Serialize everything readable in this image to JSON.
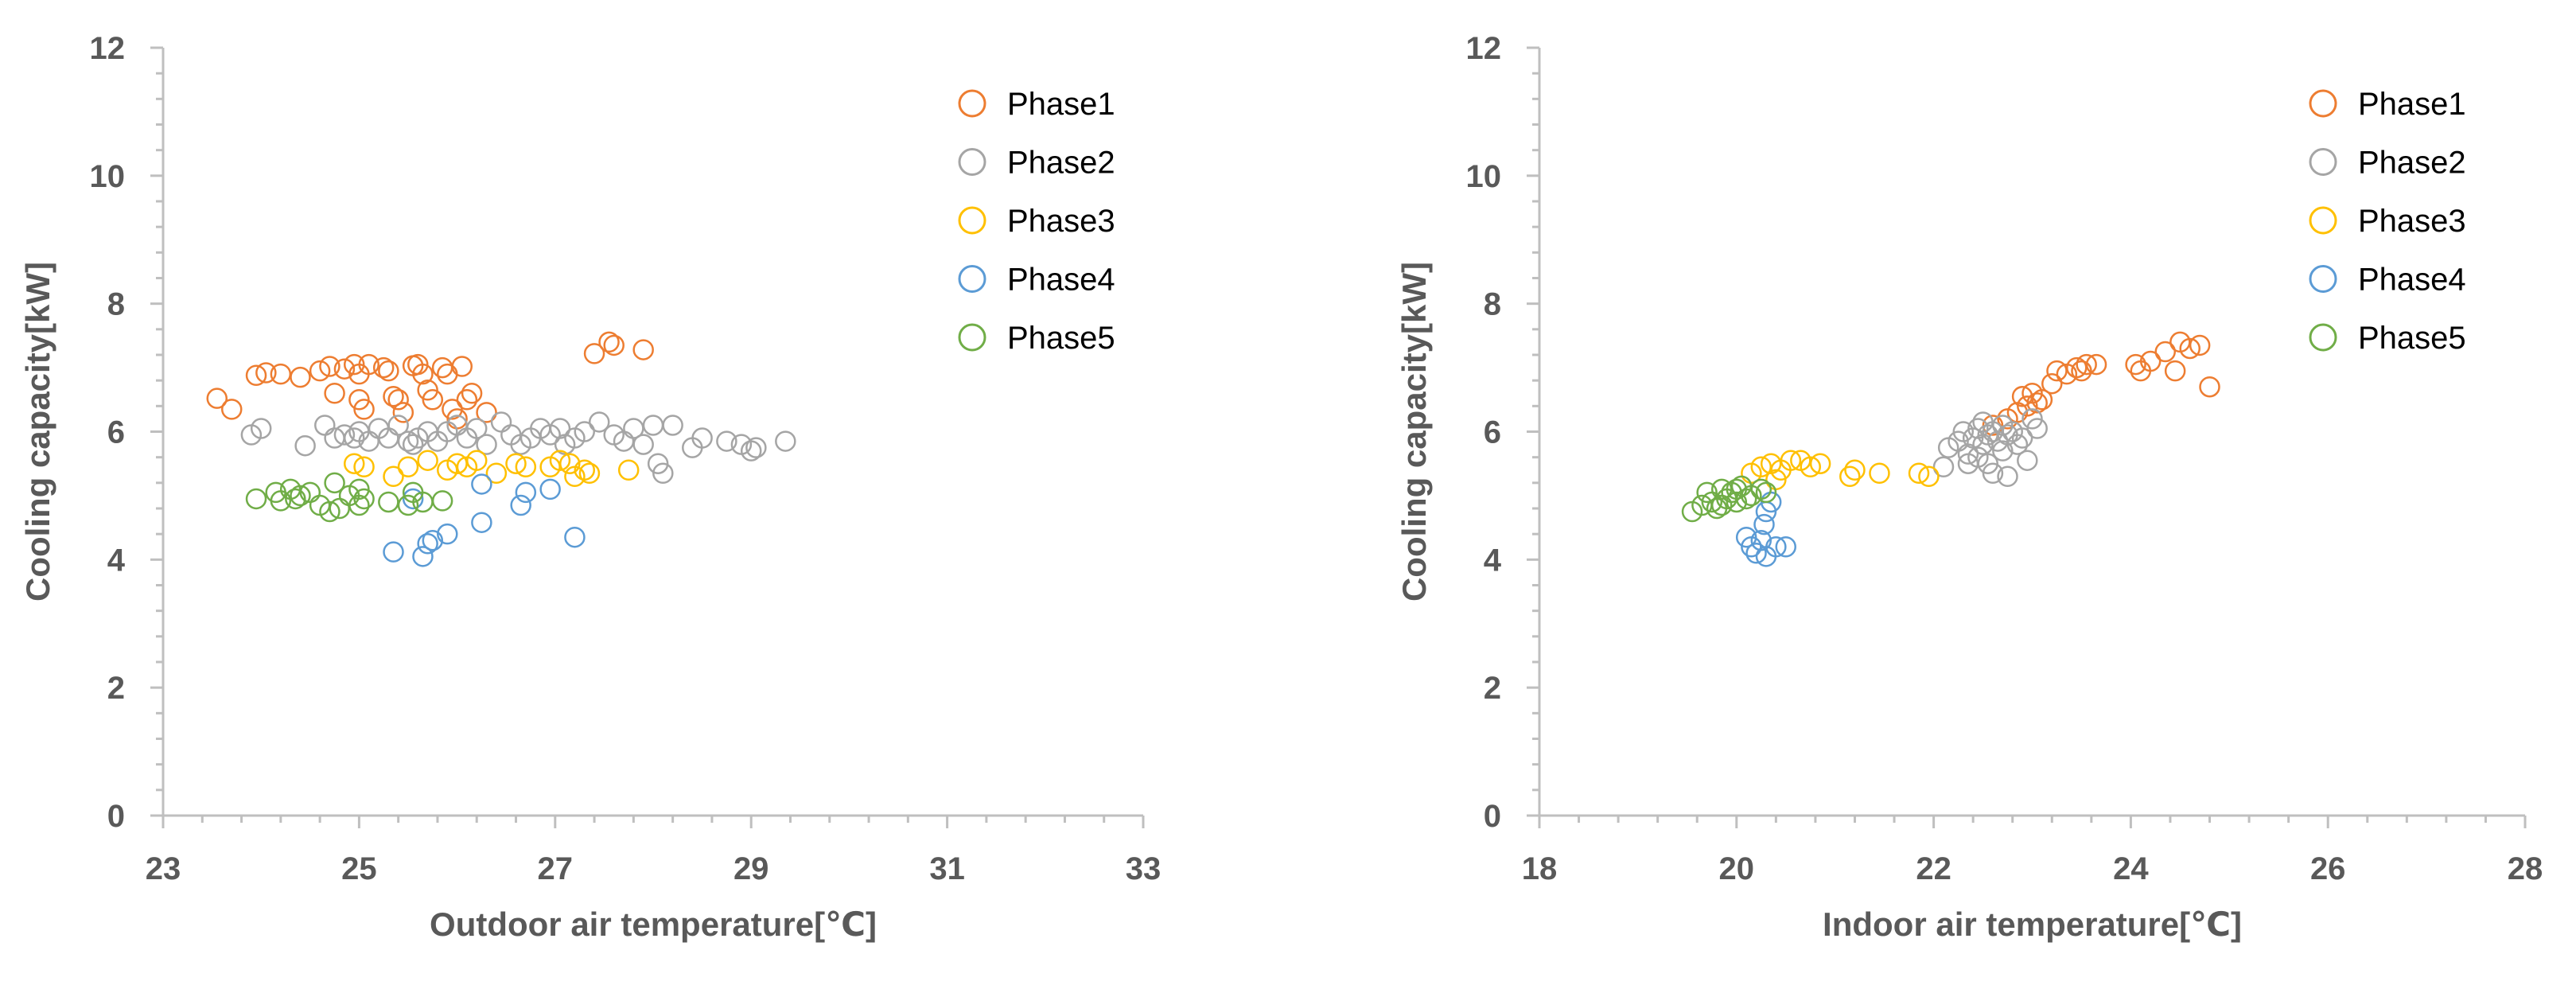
{
  "chart_data": [
    {
      "type": "scatter",
      "title": "",
      "xlabel": "Outdoor air temperature[℃]",
      "ylabel": "Cooling capacity[kW]",
      "xlim": [
        23,
        33
      ],
      "ylim": [
        0,
        12
      ],
      "xticks": [
        "23",
        "25",
        "27",
        "29",
        "31",
        "33"
      ],
      "yticks": [
        "0",
        "2",
        "4",
        "6",
        "8",
        "10",
        "12"
      ],
      "legend_position": "top-right",
      "series": [
        {
          "name": "Phase1",
          "color": "#ED7D31",
          "points": [
            [
              23.55,
              6.52
            ],
            [
              23.7,
              6.35
            ],
            [
              23.95,
              6.88
            ],
            [
              24.05,
              6.92
            ],
            [
              24.2,
              6.9
            ],
            [
              24.4,
              6.85
            ],
            [
              24.6,
              6.95
            ],
            [
              24.7,
              7.02
            ],
            [
              24.75,
              6.6
            ],
            [
              24.85,
              6.98
            ],
            [
              24.95,
              7.05
            ],
            [
              25.0,
              6.9
            ],
            [
              25.0,
              6.5
            ],
            [
              25.05,
              6.35
            ],
            [
              25.1,
              7.05
            ],
            [
              25.25,
              7.0
            ],
            [
              25.3,
              6.95
            ],
            [
              25.35,
              6.55
            ],
            [
              25.4,
              6.5
            ],
            [
              25.45,
              6.3
            ],
            [
              25.55,
              7.03
            ],
            [
              25.6,
              7.05
            ],
            [
              25.65,
              6.9
            ],
            [
              25.7,
              6.65
            ],
            [
              25.75,
              6.5
            ],
            [
              25.85,
              7.0
            ],
            [
              25.9,
              6.9
            ],
            [
              25.95,
              6.35
            ],
            [
              26.0,
              6.2
            ],
            [
              26.05,
              7.02
            ],
            [
              26.1,
              6.5
            ],
            [
              26.15,
              6.6
            ],
            [
              26.3,
              6.3
            ],
            [
              27.4,
              7.22
            ],
            [
              27.55,
              7.4
            ],
            [
              27.6,
              7.35
            ],
            [
              27.9,
              7.28
            ]
          ]
        },
        {
          "name": "Phase2",
          "color": "#A5A5A5",
          "points": [
            [
              23.9,
              5.95
            ],
            [
              24.0,
              6.05
            ],
            [
              24.45,
              5.78
            ],
            [
              24.65,
              6.1
            ],
            [
              24.75,
              5.9
            ],
            [
              24.85,
              5.95
            ],
            [
              24.95,
              5.9
            ],
            [
              25.0,
              6.0
            ],
            [
              25.1,
              5.85
            ],
            [
              25.2,
              6.05
            ],
            [
              25.3,
              5.9
            ],
            [
              25.4,
              6.1
            ],
            [
              25.5,
              5.85
            ],
            [
              25.55,
              5.8
            ],
            [
              25.6,
              5.9
            ],
            [
              25.7,
              6.0
            ],
            [
              25.8,
              5.85
            ],
            [
              25.9,
              6.0
            ],
            [
              26.0,
              6.1
            ],
            [
              26.1,
              5.9
            ],
            [
              26.2,
              6.05
            ],
            [
              26.3,
              5.8
            ],
            [
              26.45,
              6.15
            ],
            [
              26.55,
              5.95
            ],
            [
              26.65,
              5.8
            ],
            [
              26.75,
              5.9
            ],
            [
              26.85,
              6.05
            ],
            [
              26.95,
              5.95
            ],
            [
              27.05,
              6.05
            ],
            [
              27.1,
              5.8
            ],
            [
              27.2,
              5.9
            ],
            [
              27.3,
              6.0
            ],
            [
              27.45,
              6.15
            ],
            [
              27.6,
              5.95
            ],
            [
              27.7,
              5.85
            ],
            [
              27.8,
              6.05
            ],
            [
              27.9,
              5.8
            ],
            [
              28.0,
              6.1
            ],
            [
              28.05,
              5.5
            ],
            [
              28.1,
              5.35
            ],
            [
              28.2,
              6.1
            ],
            [
              28.4,
              5.75
            ],
            [
              28.5,
              5.9
            ],
            [
              28.75,
              5.85
            ],
            [
              28.9,
              5.8
            ],
            [
              29.0,
              5.7
            ],
            [
              29.05,
              5.75
            ],
            [
              29.35,
              5.85
            ]
          ]
        },
        {
          "name": "Phase3",
          "color": "#FFC000",
          "points": [
            [
              24.95,
              5.5
            ],
            [
              25.05,
              5.45
            ],
            [
              25.35,
              5.3
            ],
            [
              25.5,
              5.45
            ],
            [
              25.7,
              5.55
            ],
            [
              25.9,
              5.4
            ],
            [
              26.0,
              5.5
            ],
            [
              26.1,
              5.45
            ],
            [
              26.2,
              5.55
            ],
            [
              26.4,
              5.35
            ],
            [
              26.6,
              5.5
            ],
            [
              26.7,
              5.45
            ],
            [
              26.95,
              5.45
            ],
            [
              27.05,
              5.55
            ],
            [
              27.15,
              5.5
            ],
            [
              27.2,
              5.3
            ],
            [
              27.3,
              5.4
            ],
            [
              27.35,
              5.35
            ],
            [
              27.75,
              5.4
            ]
          ]
        },
        {
          "name": "Phase4",
          "color": "#5B9BD5",
          "points": [
            [
              25.35,
              4.12
            ],
            [
              25.55,
              4.95
            ],
            [
              25.65,
              4.05
            ],
            [
              25.7,
              4.25
            ],
            [
              25.75,
              4.3
            ],
            [
              25.9,
              4.4
            ],
            [
              26.25,
              4.58
            ],
            [
              26.25,
              5.18
            ],
            [
              26.65,
              4.85
            ],
            [
              26.7,
              5.05
            ],
            [
              26.95,
              5.1
            ],
            [
              27.2,
              4.35
            ]
          ]
        },
        {
          "name": "Phase5",
          "color": "#70AD47",
          "points": [
            [
              23.95,
              4.95
            ],
            [
              24.15,
              5.05
            ],
            [
              24.2,
              4.92
            ],
            [
              24.3,
              5.1
            ],
            [
              24.35,
              4.95
            ],
            [
              24.4,
              5.0
            ],
            [
              24.5,
              5.05
            ],
            [
              24.6,
              4.85
            ],
            [
              24.7,
              4.75
            ],
            [
              24.75,
              5.2
            ],
            [
              24.8,
              4.8
            ],
            [
              24.9,
              5.0
            ],
            [
              25.0,
              4.85
            ],
            [
              25.0,
              5.1
            ],
            [
              25.05,
              4.95
            ],
            [
              25.3,
              4.9
            ],
            [
              25.5,
              4.85
            ],
            [
              25.55,
              5.05
            ],
            [
              25.65,
              4.9
            ],
            [
              25.85,
              4.92
            ]
          ]
        }
      ]
    },
    {
      "type": "scatter",
      "title": "",
      "xlabel": "Indoor air temperature[℃]",
      "ylabel": "Cooling capacity[kW]",
      "xlim": [
        18,
        28
      ],
      "ylim": [
        0,
        12
      ],
      "xticks": [
        "18",
        "20",
        "22",
        "24",
        "26",
        "28"
      ],
      "yticks": [
        "0",
        "2",
        "4",
        "6",
        "8",
        "10",
        "12"
      ],
      "legend_position": "top-right",
      "series": [
        {
          "name": "Phase1",
          "color": "#ED7D31",
          "points": [
            [
              22.6,
              6.1
            ],
            [
              22.75,
              6.2
            ],
            [
              22.85,
              6.3
            ],
            [
              22.9,
              6.55
            ],
            [
              23.0,
              6.6
            ],
            [
              23.1,
              6.5
            ],
            [
              23.2,
              6.75
            ],
            [
              23.25,
              6.95
            ],
            [
              23.35,
              6.9
            ],
            [
              23.45,
              7.0
            ],
            [
              23.5,
              6.95
            ],
            [
              23.55,
              7.05
            ],
            [
              23.65,
              7.05
            ],
            [
              24.05,
              7.05
            ],
            [
              24.1,
              6.95
            ],
            [
              24.2,
              7.1
            ],
            [
              24.35,
              7.25
            ],
            [
              24.45,
              6.95
            ],
            [
              24.5,
              7.4
            ],
            [
              24.6,
              7.3
            ],
            [
              24.7,
              7.35
            ],
            [
              24.8,
              6.7
            ],
            [
              22.95,
              6.4
            ],
            [
              23.05,
              6.45
            ]
          ]
        },
        {
          "name": "Phase2",
          "color": "#A5A5A5",
          "points": [
            [
              22.15,
              5.75
            ],
            [
              22.25,
              5.85
            ],
            [
              22.3,
              6.0
            ],
            [
              22.35,
              5.65
            ],
            [
              22.4,
              5.9
            ],
            [
              22.45,
              6.05
            ],
            [
              22.5,
              5.8
            ],
            [
              22.5,
              6.15
            ],
            [
              22.55,
              5.95
            ],
            [
              22.55,
              5.5
            ],
            [
              22.6,
              6.0
            ],
            [
              22.6,
              5.35
            ],
            [
              22.65,
              5.85
            ],
            [
              22.7,
              6.1
            ],
            [
              22.7,
              5.7
            ],
            [
              22.75,
              5.95
            ],
            [
              22.8,
              6.0
            ],
            [
              22.85,
              5.8
            ],
            [
              22.9,
              5.9
            ],
            [
              22.95,
              5.55
            ],
            [
              23.0,
              6.2
            ],
            [
              23.05,
              6.05
            ],
            [
              22.45,
              5.6
            ],
            [
              22.35,
              5.5
            ],
            [
              22.75,
              5.3
            ],
            [
              22.1,
              5.45
            ]
          ]
        },
        {
          "name": "Phase3",
          "color": "#FFC000",
          "points": [
            [
              20.15,
              5.35
            ],
            [
              20.25,
              5.45
            ],
            [
              20.35,
              5.5
            ],
            [
              20.45,
              5.4
            ],
            [
              20.55,
              5.55
            ],
            [
              20.65,
              5.55
            ],
            [
              20.75,
              5.45
            ],
            [
              20.85,
              5.5
            ],
            [
              21.15,
              5.3
            ],
            [
              21.2,
              5.4
            ],
            [
              21.45,
              5.35
            ],
            [
              21.85,
              5.35
            ],
            [
              21.95,
              5.3
            ],
            [
              20.4,
              5.25
            ]
          ]
        },
        {
          "name": "Phase4",
          "color": "#5B9BD5",
          "points": [
            [
              20.1,
              4.35
            ],
            [
              20.15,
              4.2
            ],
            [
              20.2,
              4.1
            ],
            [
              20.25,
              4.3
            ],
            [
              20.28,
              4.55
            ],
            [
              20.3,
              4.75
            ],
            [
              20.35,
              4.9
            ],
            [
              20.4,
              4.2
            ],
            [
              20.5,
              4.2
            ],
            [
              20.3,
              4.05
            ]
          ]
        },
        {
          "name": "Phase5",
          "color": "#70AD47",
          "points": [
            [
              19.55,
              4.75
            ],
            [
              19.65,
              4.85
            ],
            [
              19.7,
              5.05
            ],
            [
              19.75,
              4.9
            ],
            [
              19.8,
              4.8
            ],
            [
              19.85,
              5.1
            ],
            [
              19.9,
              4.95
            ],
            [
              19.95,
              5.05
            ],
            [
              20.0,
              4.9
            ],
            [
              20.05,
              5.15
            ],
            [
              20.1,
              4.95
            ],
            [
              20.15,
              5.0
            ],
            [
              20.25,
              5.1
            ],
            [
              20.3,
              5.05
            ],
            [
              19.85,
              4.85
            ],
            [
              20.0,
              5.1
            ]
          ]
        }
      ]
    }
  ]
}
